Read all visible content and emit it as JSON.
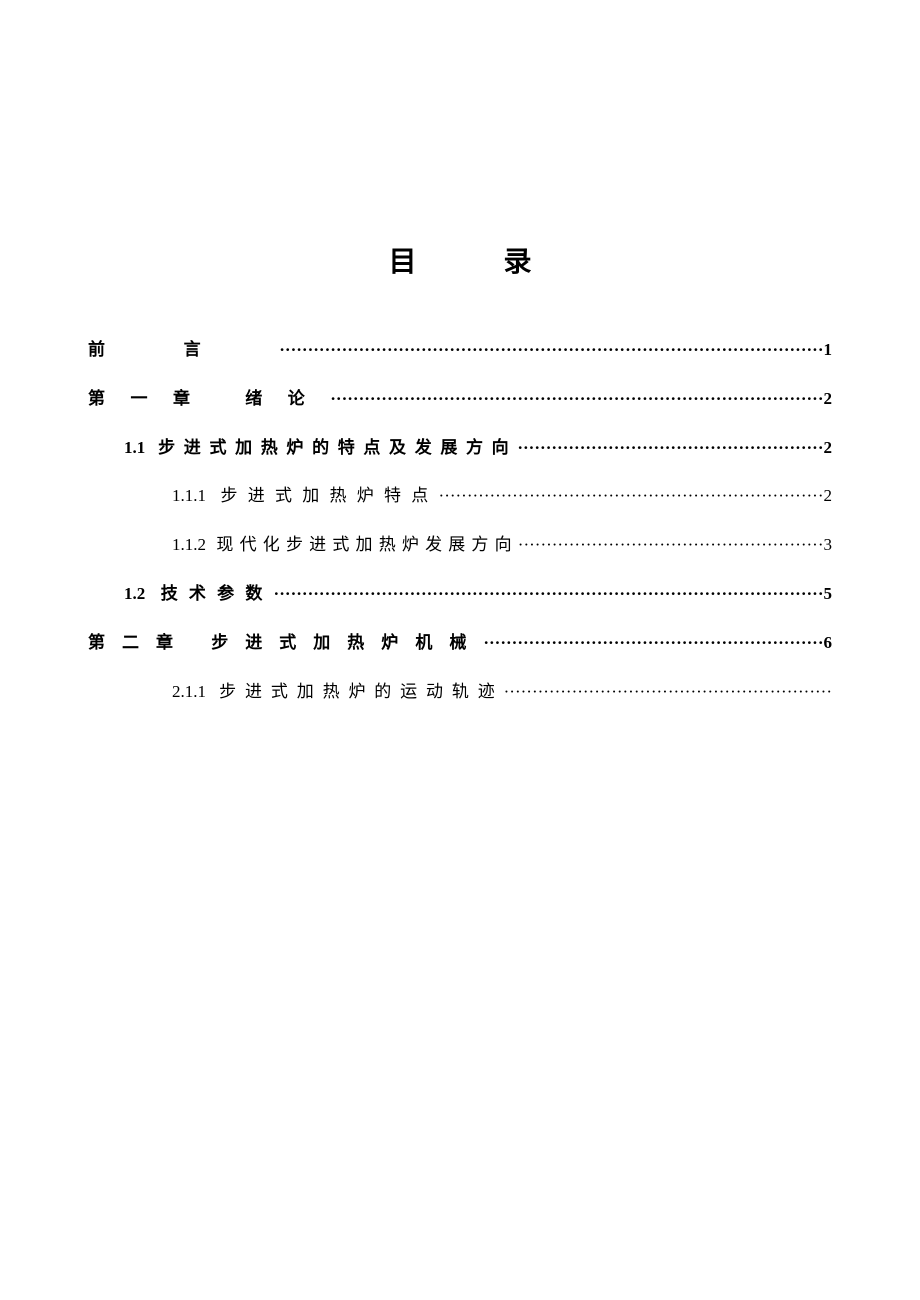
{
  "title": "目 录",
  "entries": [
    {
      "text": "前言································································································1",
      "bold": true,
      "indent": 0
    },
    {
      "text": "第一章 绪论·······················································································2",
      "bold": true,
      "indent": 0,
      "hangingIndent": true
    },
    {
      "text": "1.1 步进式加热炉的特点及发展方向······················································2",
      "bold": true,
      "indent": 1
    },
    {
      "text": "1.1.1 步进式加热炉特点····································································2",
      "bold": false,
      "indent": 2
    },
    {
      "text": "1.1.2 现代化步进式加热炉发展方向······················································3",
      "bold": false,
      "indent": 2
    },
    {
      "text": "1.2 技术参数·································································································5",
      "bold": true,
      "indent": 1
    },
    {
      "text": "第二章 步进式加热炉机械····························································6",
      "bold": true,
      "indent": 0
    },
    {
      "text": "2.1.1 步进式加热炉的运动轨迹··························································",
      "bold": false,
      "indent": 2
    }
  ]
}
